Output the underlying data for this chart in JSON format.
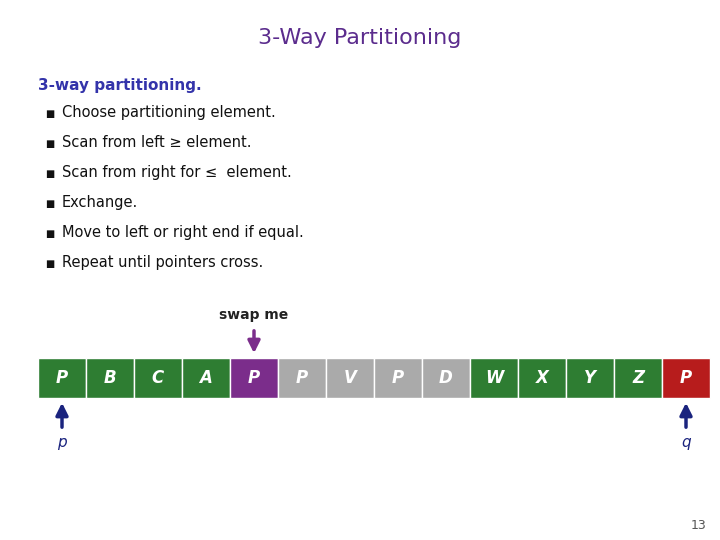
{
  "title": "3-Way Partitioning",
  "title_color": "#5B2C8D",
  "title_fontsize": 16,
  "subtitle": "3-way partitioning.",
  "subtitle_color": "#3333AA",
  "subtitle_fontsize": 11,
  "bullets": [
    "Choose partitioning element.",
    "Scan from left ≥ element.",
    "Scan from right for ≤  element.",
    "Exchange.",
    "Move to left or right end if equal.",
    "Repeat until pointers cross."
  ],
  "bullet_fontsize": 10.5,
  "bullet_color": "#111111",
  "elements": [
    "P",
    "B",
    "C",
    "A",
    "P",
    "P",
    "V",
    "P",
    "D",
    "W",
    "X",
    "Y",
    "Z",
    "P"
  ],
  "cell_colors": [
    "#2E7D32",
    "#2E7D32",
    "#2E7D32",
    "#2E7D32",
    "#7B2D8B",
    "#AAAAAA",
    "#AAAAAA",
    "#AAAAAA",
    "#AAAAAA",
    "#2E7D32",
    "#2E7D32",
    "#2E7D32",
    "#2E7D32",
    "#B71C1C"
  ],
  "text_color": "#FFFFFF",
  "swap_me_label": "swap me",
  "swap_me_arrow_index": 4,
  "pointer_p_index": 0,
  "pointer_q_index": 13,
  "pointer_color": "#1A237E",
  "arrow_color": "#7B2D8B",
  "page_number": "13",
  "background_color": "#FFFFFF"
}
